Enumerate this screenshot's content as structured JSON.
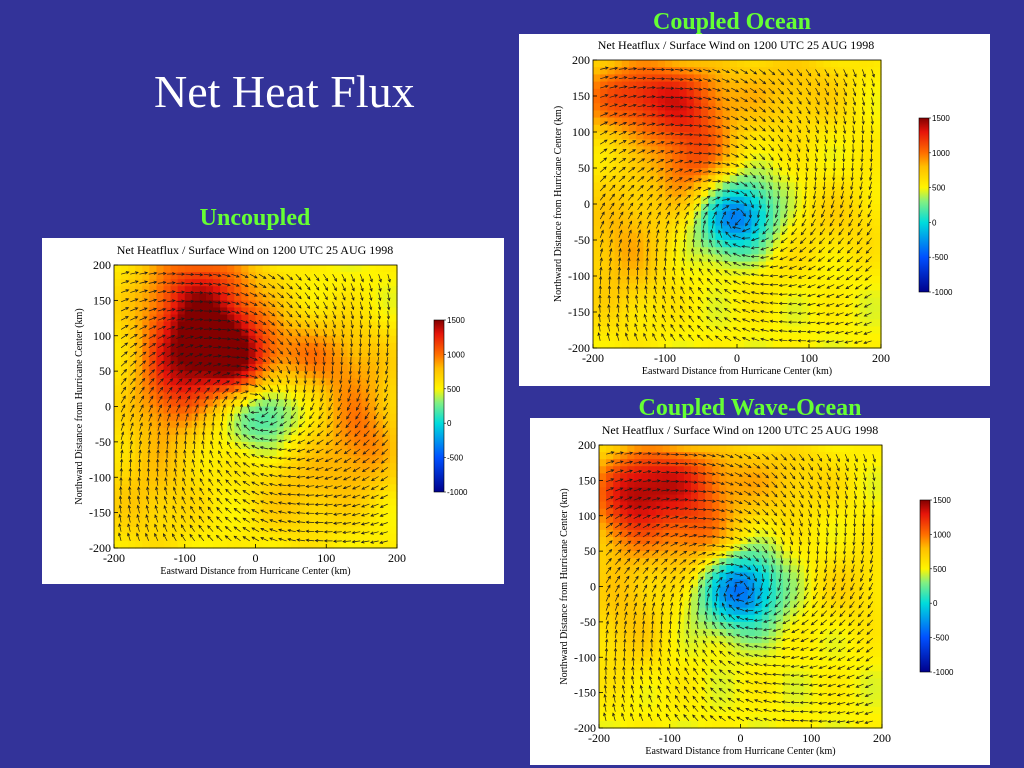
{
  "slide": {
    "title": "Net Heat Flux"
  },
  "panels": [
    {
      "caption": "Coupled Ocean",
      "center": [
        0,
        -20
      ],
      "scale": 1.0,
      "blobs": [
        [
          -120,
          150,
          75,
          40,
          1.8
        ],
        [
          -60,
          60,
          40,
          50,
          1.4
        ],
        [
          -160,
          -60,
          45,
          70,
          0.8
        ],
        [
          80,
          160,
          60,
          45,
          0.6
        ],
        [
          150,
          -20,
          50,
          40,
          0.4
        ],
        [
          30,
          -60,
          45,
          40,
          0.4
        ]
      ],
      "coldscale": 1.5
    },
    {
      "caption": "Uncoupled",
      "center": [
        0,
        0
      ],
      "scale": 1.0,
      "blobs": [
        [
          -80,
          150,
          60,
          60,
          1.8
        ],
        [
          -60,
          80,
          50,
          45,
          1.6
        ],
        [
          -120,
          20,
          40,
          50,
          1.2
        ],
        [
          -20,
          30,
          30,
          40,
          1.3
        ],
        [
          80,
          70,
          70,
          40,
          1.0
        ],
        [
          150,
          -40,
          40,
          60,
          1.1
        ],
        [
          -150,
          -120,
          50,
          60,
          0.6
        ],
        [
          60,
          -120,
          50,
          50,
          0.6
        ]
      ],
      "coldscale": 1.0
    },
    {
      "caption": "Coupled Wave-Ocean",
      "center": [
        0,
        -5
      ],
      "scale": 1.0,
      "blobs": [
        [
          -100,
          150,
          60,
          40,
          1.6
        ],
        [
          -160,
          110,
          40,
          50,
          1.3
        ],
        [
          -60,
          70,
          40,
          40,
          1.1
        ],
        [
          -160,
          -40,
          40,
          60,
          0.6
        ],
        [
          50,
          150,
          60,
          40,
          0.6
        ],
        [
          160,
          0,
          40,
          40,
          0.4
        ]
      ],
      "coldscale": 1.4
    }
  ],
  "charts_common": {
    "title": "Net Heatflux / Surface Wind on 1200 UTC 25 AUG 1998",
    "xlabel": "Eastward Distance from Hurricane Center (km)",
    "ylabel": "Northward Distance from Hurricane Center (km)",
    "xticks": [
      "-200",
      "-100",
      "0",
      "100",
      "200"
    ],
    "yticks": [
      "200",
      "150",
      "100",
      "50",
      "0",
      "-50",
      "-100",
      "-150",
      "-200"
    ],
    "colorbar_ticks": [
      "1500",
      "1000",
      "500",
      "0",
      "-500",
      "-1000"
    ]
  },
  "chart_data": [
    {
      "type": "heatmap",
      "title": "Net Heatflux / Surface Wind on 1200 UTC 25 AUG 1998",
      "xlabel": "Eastward Distance from Hurricane Center (km)",
      "ylabel": "Northward Distance from Hurricane Center (km)",
      "xlim": [
        -200,
        200
      ],
      "ylim": [
        -200,
        200
      ],
      "colorbar": [
        -1000,
        1500
      ],
      "overlay": "wind vectors"
    },
    {
      "type": "heatmap",
      "title": "Net Heatflux / Surface Wind on 1200 UTC 25 AUG 1998",
      "xlabel": "Eastward Distance from Hurricane Center (km)",
      "ylabel": "Northward Distance from Hurricane Center (km)",
      "xlim": [
        -200,
        200
      ],
      "ylim": [
        -200,
        200
      ],
      "colorbar": [
        -1000,
        1500
      ],
      "overlay": "wind vectors"
    },
    {
      "type": "heatmap",
      "title": "Net Heatflux / Surface Wind on 1200 UTC 25 AUG 1998",
      "xlabel": "Eastward Distance from Hurricane Center (km)",
      "ylabel": "Northward Distance from Hurricane Center (km)",
      "xlim": [
        -200,
        200
      ],
      "ylim": [
        -200,
        200
      ],
      "colorbar": [
        -1000,
        1500
      ],
      "overlay": "wind vectors"
    }
  ]
}
